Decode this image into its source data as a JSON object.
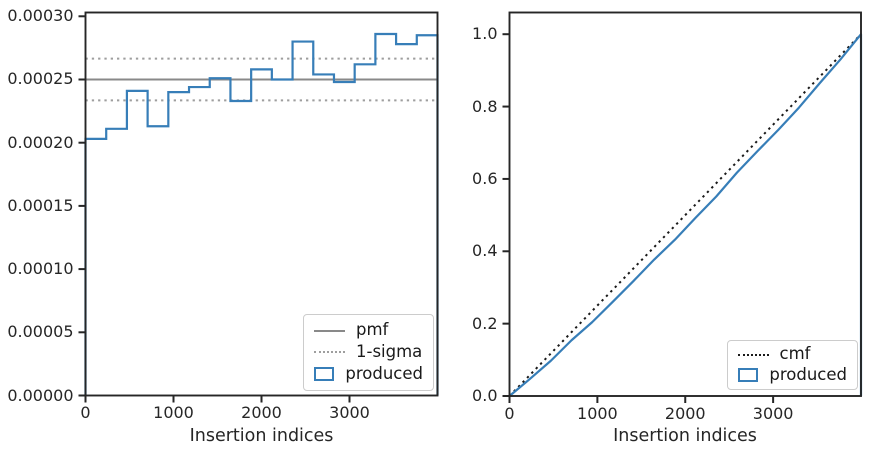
{
  "colors": {
    "produced_blue": "#377eb8",
    "pmf_gray": "#898989",
    "sigma_gray": "#9e9e9e",
    "cmf_black": "#1a1a1a",
    "axis": "#262626",
    "text": "#262626",
    "legend_border": "#cccccc"
  },
  "left_plot": {
    "xlabel": "Insertion indices",
    "legend": [
      {
        "label": "pmf",
        "swatch": "gray-solid-line"
      },
      {
        "label": "1-sigma",
        "swatch": "gray-dotted-line"
      },
      {
        "label": "produced",
        "swatch": "blue-step-rect"
      }
    ]
  },
  "right_plot": {
    "xlabel": "Insertion indices",
    "legend": [
      {
        "label": "cmf",
        "swatch": "black-dotted-line"
      },
      {
        "label": "produced",
        "swatch": "blue-step-rect"
      }
    ]
  },
  "chart_data": [
    {
      "type": "bar",
      "subtype": "step-histogram-pmf",
      "title": "",
      "xlabel": "Insertion indices",
      "ylabel": "",
      "xlim": [
        0,
        4000
      ],
      "ylim": [
        0,
        0.000303
      ],
      "xticks": {
        "values": [
          0,
          1000,
          2000,
          3000
        ],
        "labels": [
          "0",
          "1000",
          "2000",
          "3000"
        ]
      },
      "yticks": {
        "values": [
          0.0003,
          0.00025,
          0.0002,
          0.00015,
          0.0001,
          5e-05,
          0
        ],
        "labels": [
          "0.00030",
          "0.00025",
          "0.00020",
          "0.00015",
          "0.00010",
          "0.00005",
          "0.00000"
        ]
      },
      "bin_edges": [
        0,
        235.3,
        470.6,
        705.9,
        941.2,
        1176.5,
        1411.8,
        1647.1,
        1882.4,
        2117.6,
        2352.9,
        2588.2,
        2823.5,
        3058.8,
        3294.1,
        3529.4,
        3764.7,
        4000
      ],
      "values": [
        0.000203,
        0.000211,
        0.000241,
        0.000213,
        0.00024,
        0.000244,
        0.000251,
        0.000233,
        0.000258,
        0.00025,
        0.00028,
        0.000254,
        0.000248,
        0.000262,
        0.000286,
        0.000278,
        0.000285
      ],
      "pmf_value": 0.00025,
      "sigma_values": [
        0.0002335,
        0.0002665
      ],
      "legend_entries": [
        "pmf",
        "1-sigma",
        "produced"
      ],
      "legend_position": "lower right",
      "grid": false
    },
    {
      "type": "line",
      "subtype": "cumulative-cmf",
      "title": "",
      "xlabel": "Insertion indices",
      "ylabel": "",
      "xlim": [
        0,
        4000
      ],
      "ylim": [
        0,
        1.06
      ],
      "xticks": {
        "values": [
          0,
          1000,
          2000,
          3000
        ],
        "labels": [
          "0",
          "1000",
          "2000",
          "3000"
        ]
      },
      "yticks": {
        "values": [
          1.0,
          0.8,
          0.6,
          0.4,
          0.2,
          0.0
        ],
        "labels": [
          "1.0",
          "0.8",
          "0.6",
          "0.4",
          "0.2",
          "0.0"
        ]
      },
      "cmf_line": {
        "x": [
          0,
          4000
        ],
        "y": [
          0,
          1.0
        ]
      },
      "produced": {
        "x": [
          0,
          235.3,
          470.6,
          705.9,
          941.2,
          1176.5,
          1411.8,
          1647.1,
          1882.4,
          2117.6,
          2352.9,
          2588.2,
          2823.5,
          3058.8,
          3294.1,
          3529.4,
          3764.7,
          4000,
          4000
        ],
        "y": [
          0,
          0.0478,
          0.0974,
          0.1541,
          0.2042,
          0.2607,
          0.3181,
          0.3772,
          0.432,
          0.4927,
          0.5515,
          0.6174,
          0.6772,
          0.7355,
          0.7972,
          0.8645,
          0.9299,
          1.0,
          0
        ]
      },
      "legend_entries": [
        "cmf",
        "produced"
      ],
      "legend_position": "lower right",
      "grid": false
    }
  ]
}
